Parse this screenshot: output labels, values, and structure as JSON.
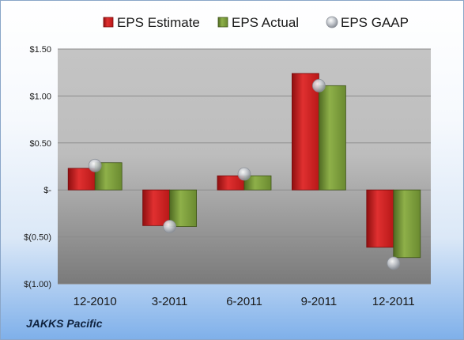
{
  "company": "JAKKS Pacific",
  "chart_data": {
    "type": "bar",
    "categories": [
      "12-2010",
      "3-2011",
      "6-2011",
      "9-2011",
      "12-2011"
    ],
    "series": [
      {
        "name": "EPS Estimate",
        "kind": "bar",
        "color": "#cc2222",
        "values": [
          0.23,
          -0.38,
          0.15,
          1.24,
          -0.61
        ]
      },
      {
        "name": "EPS Actual",
        "kind": "bar",
        "color": "#7a9a3a",
        "values": [
          0.29,
          -0.39,
          0.15,
          1.11,
          -0.72
        ]
      },
      {
        "name": "EPS GAAP",
        "kind": "marker",
        "color": "#b8bcc4",
        "values": [
          0.26,
          -0.39,
          0.17,
          1.11,
          -0.78
        ]
      }
    ],
    "ylim": [
      -1.0,
      1.5
    ],
    "yticks": [
      1.5,
      1.0,
      0.5,
      0,
      -0.5,
      -1.0
    ],
    "ytick_labels": [
      "$1.50",
      "$1.00",
      "$0.50",
      "$-",
      "$(0.50)",
      "$(1.00)"
    ],
    "legend_position": "top",
    "grid": true
  }
}
